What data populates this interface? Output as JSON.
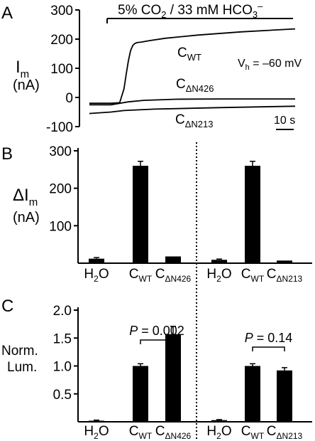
{
  "panels": {
    "A": {
      "letter": "A",
      "ylabel_main": "I",
      "ylabel_sub": "m",
      "yunit": "(nA)",
      "stim": {
        "text": "5% CO",
        "sub": "2",
        "text2": " / 33 mM HCO",
        "sub2": "3",
        "sup2": "–"
      },
      "vh": {
        "main": "V",
        "sub": "h",
        "rest": " = –60 mV"
      },
      "scale_label": "10 s"
    },
    "B": {
      "letter": "B",
      "ylabel_main": "ΔI",
      "ylabel_sub": "m",
      "yunit": "(nA)"
    },
    "C": {
      "letter": "C",
      "ylabel_line1": "Norm.",
      "ylabel_line2": "Lum."
    }
  },
  "chart_data": [
    {
      "panel": "A",
      "type": "line",
      "title": "",
      "xlabel": "",
      "ylabel": "Im (nA)",
      "ylim": [
        -100,
        300
      ],
      "yticks": [
        "300",
        "200",
        "100",
        "0",
        "-100"
      ],
      "ytick_values": [
        300,
        200,
        100,
        0,
        -100
      ],
      "series": [
        {
          "name": "C_WT",
          "label_main": "C",
          "label_sub": "WT",
          "x": [
            0,
            10,
            14,
            16,
            17,
            18,
            19,
            20,
            21,
            22,
            24,
            28,
            35,
            50,
            70,
            95
          ],
          "y": [
            -20,
            -20,
            -18,
            30,
            80,
            125,
            160,
            178,
            185,
            188,
            190,
            195,
            203,
            214,
            225,
            235
          ]
        },
        {
          "name": "C_ΔN426",
          "label_main": "C",
          "label_sub": "ΔN426",
          "x": [
            0,
            10,
            14,
            18,
            25,
            40,
            60,
            95
          ],
          "y": [
            -25,
            -25,
            -20,
            -15,
            -10,
            -6,
            -5,
            -5
          ]
        },
        {
          "name": "C_ΔN213",
          "label_main": "C",
          "label_sub": "ΔN213",
          "x": [
            0,
            10,
            16,
            30,
            60,
            95
          ],
          "y": [
            -55,
            -50,
            -45,
            -40,
            -35,
            -30
          ]
        }
      ]
    },
    {
      "panel": "B",
      "type": "bar",
      "title": "",
      "ylabel": "ΔIm (nA)",
      "ylim": [
        0,
        300
      ],
      "yticks": [
        "300",
        "200",
        "100"
      ],
      "ytick_values": [
        300,
        200,
        100
      ],
      "groups": [
        {
          "categories": [
            {
              "main": "H",
              "sub": "2",
              "tail": "O"
            },
            {
              "main": "C",
              "sub": "WT"
            },
            {
              "main": "C",
              "sub": "ΔN426"
            }
          ],
          "values": [
            12,
            260,
            18
          ],
          "errors": [
            3,
            12,
            0
          ]
        },
        {
          "categories": [
            {
              "main": "H",
              "sub": "2",
              "tail": "O"
            },
            {
              "main": "C",
              "sub": "WT"
            },
            {
              "main": "C",
              "sub": "ΔN213"
            }
          ],
          "values": [
            9,
            260,
            7
          ],
          "errors": [
            2,
            12,
            0
          ]
        }
      ]
    },
    {
      "panel": "C",
      "type": "bar",
      "title": "",
      "ylabel": "Norm. Lum.",
      "ylim": [
        0,
        2.0
      ],
      "yticks": [
        "2.0",
        "1.5",
        "1.0",
        "0.5"
      ],
      "ytick_values": [
        2.0,
        1.5,
        1.0,
        0.5
      ],
      "groups": [
        {
          "categories": [
            {
              "main": "H",
              "sub": "2",
              "tail": "O"
            },
            {
              "main": "C",
              "sub": "WT"
            },
            {
              "main": "C",
              "sub": "ΔN426"
            }
          ],
          "values": [
            0.02,
            1.0,
            1.57
          ],
          "errors": [
            0.01,
            0.04,
            0.14
          ],
          "significance": {
            "label_main": "P",
            "label_rest": " = 0.002",
            "between": [
              1,
              2
            ]
          }
        },
        {
          "categories": [
            {
              "main": "H",
              "sub": "2",
              "tail": "O"
            },
            {
              "main": "C",
              "sub": "WT"
            },
            {
              "main": "C",
              "sub": "ΔN213"
            }
          ],
          "values": [
            0.03,
            1.0,
            0.92
          ],
          "errors": [
            0.01,
            0.04,
            0.05
          ],
          "significance": {
            "label_main": "P",
            "label_rest": " = 0.14",
            "between": [
              1,
              2
            ]
          }
        }
      ]
    }
  ]
}
